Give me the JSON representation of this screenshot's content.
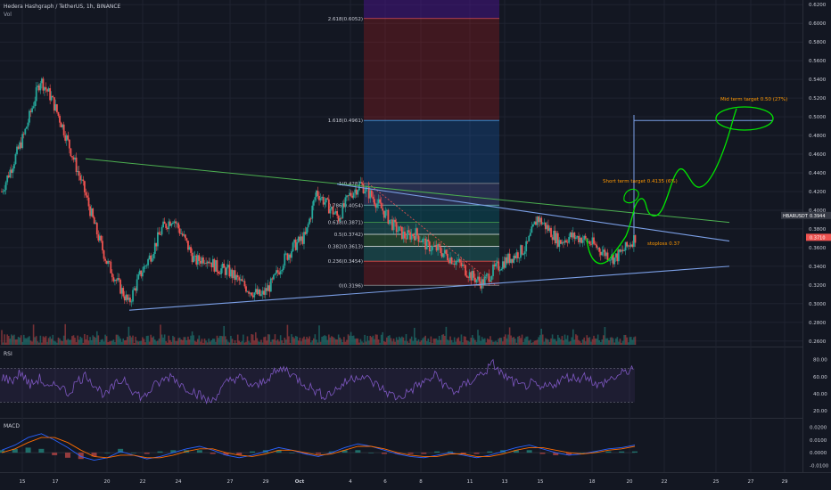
{
  "header": {
    "title": "Hedera Hashgraph / TetherUS, 1h, BINANCE",
    "volume_label": "Vol"
  },
  "panels": {
    "rsi_label": "RSI",
    "macd_label": "MACD"
  },
  "colors": {
    "background": "#131722",
    "candle_up": "#26a69a",
    "candle_down": "#ef5350",
    "trendline_green": "#4caf50",
    "trendline_blue": "#7b9fe6",
    "drawing_green": "#00e600",
    "annotation_orange": "#ff9800",
    "rsi_line": "#7e57c2",
    "macd_line": "#2962ff",
    "signal_line": "#ff6d00"
  },
  "chart_data": {
    "type": "candlestick",
    "symbol": "HBARUSDT",
    "interval": "1h",
    "exchange": "BINANCE",
    "price_axis": {
      "ticks": [
        "0.6200",
        "0.6000",
        "0.5800",
        "0.5600",
        "0.5400",
        "0.5200",
        "0.5000",
        "0.4800",
        "0.4600",
        "0.4400",
        "0.4200",
        "0.4000",
        "0.3800",
        "0.3600",
        "0.3400",
        "0.3200",
        "0.3000",
        "0.2800",
        "0.2600"
      ],
      "ylim": [
        0.255,
        0.625
      ]
    },
    "current_price_tags": [
      {
        "label": "HBARUSDT",
        "value": "0.3944"
      },
      {
        "label": "",
        "value": "0.3710"
      }
    ],
    "x_axis": {
      "ticks": [
        "15",
        "17",
        "20",
        "22",
        "24",
        "27",
        "29",
        "Oct",
        "4",
        "6",
        "8",
        "11",
        "13",
        "15",
        "18",
        "20",
        "22",
        "25",
        "27",
        "29"
      ]
    },
    "price_path": [
      [
        0,
        0.42
      ],
      [
        8,
        0.48
      ],
      [
        14,
        0.54
      ],
      [
        18,
        0.52
      ],
      [
        22,
        0.49
      ],
      [
        26,
        0.455
      ],
      [
        30,
        0.42
      ],
      [
        34,
        0.38
      ],
      [
        38,
        0.345
      ],
      [
        42,
        0.322
      ],
      [
        46,
        0.3
      ],
      [
        50,
        0.33
      ],
      [
        54,
        0.352
      ],
      [
        58,
        0.38
      ],
      [
        62,
        0.392
      ],
      [
        66,
        0.37
      ],
      [
        70,
        0.345
      ],
      [
        74,
        0.35
      ],
      [
        78,
        0.338
      ],
      [
        82,
        0.335
      ],
      [
        86,
        0.324
      ],
      [
        90,
        0.314
      ],
      [
        94,
        0.308
      ],
      [
        98,
        0.322
      ],
      [
        102,
        0.346
      ],
      [
        106,
        0.362
      ],
      [
        110,
        0.372
      ],
      [
        114,
        0.42
      ],
      [
        118,
        0.405
      ],
      [
        122,
        0.392
      ],
      [
        126,
        0.416
      ],
      [
        130,
        0.428
      ],
      [
        134,
        0.415
      ],
      [
        138,
        0.4
      ],
      [
        142,
        0.383
      ],
      [
        146,
        0.372
      ],
      [
        150,
        0.375
      ],
      [
        154,
        0.362
      ],
      [
        158,
        0.358
      ],
      [
        162,
        0.35
      ],
      [
        166,
        0.342
      ],
      [
        170,
        0.33
      ],
      [
        174,
        0.322
      ],
      [
        178,
        0.335
      ],
      [
        182,
        0.345
      ],
      [
        186,
        0.352
      ],
      [
        190,
        0.36
      ],
      [
        194,
        0.392
      ],
      [
        198,
        0.38
      ],
      [
        202,
        0.366
      ],
      [
        206,
        0.372
      ],
      [
        210,
        0.37
      ],
      [
        214,
        0.364
      ],
      [
        218,
        0.355
      ],
      [
        222,
        0.348
      ],
      [
        226,
        0.359
      ],
      [
        230,
        0.373
      ]
    ],
    "fibonacci": {
      "levels": [
        {
          "ratio": 0,
          "price": 0.3196,
          "label": "0(0.3196)"
        },
        {
          "ratio": 0.236,
          "price": 0.3454,
          "label": "0.236(0.3454)"
        },
        {
          "ratio": 0.382,
          "price": 0.3613,
          "label": "0.382(0.3613)"
        },
        {
          "ratio": 0.5,
          "price": 0.3742,
          "label": "0.5(0.3742)"
        },
        {
          "ratio": 0.618,
          "price": 0.3871,
          "label": "0.618(0.3871)"
        },
        {
          "ratio": 0.786,
          "price": 0.4054,
          "label": "0.786(0.4054)"
        },
        {
          "ratio": 1,
          "price": 0.4287,
          "label": "1(0.4287)"
        },
        {
          "ratio": 1.618,
          "price": 0.4961,
          "label": "1.618(0.4961)"
        },
        {
          "ratio": 2.618,
          "price": 0.6052,
          "label": "2.618(0.6052)"
        }
      ]
    },
    "annotations": [
      {
        "text": "Mid term target 0.50 (27%)",
        "color": "#ff9800"
      },
      {
        "text": "Short term target 0.4135 (6%)",
        "color": "#ff9800"
      },
      {
        "text": "stoploss 0.37",
        "color": "#ff9800"
      }
    ],
    "rsi": {
      "ticks": [
        "80.00",
        "60.00",
        "40.00",
        "20.00"
      ],
      "ylim": [
        15,
        88
      ],
      "upper_band": 70,
      "lower_band": 30,
      "values": [
        60,
        55,
        65,
        50,
        58,
        45,
        52,
        40,
        55,
        62,
        48,
        38,
        50,
        58,
        42,
        35,
        48,
        55,
        62,
        50,
        45,
        38,
        30,
        42,
        55,
        60,
        52,
        48,
        58,
        65,
        70,
        60,
        52,
        45,
        38,
        42,
        50,
        58,
        62,
        55,
        48,
        40,
        35,
        42,
        50,
        55,
        62,
        48,
        42,
        50,
        58,
        65,
        75,
        62,
        55,
        48,
        52,
        45,
        50,
        55,
        60,
        58,
        62,
        48,
        55,
        60,
        65,
        72
      ]
    },
    "macd": {
      "ticks": [
        "0.0200",
        "0.0100",
        "0.0000",
        "-0.0100"
      ],
      "ylim": [
        -0.014,
        0.024
      ],
      "macd_values": [
        0.002,
        0.006,
        0.012,
        0.015,
        0.01,
        0.004,
        -0.003,
        -0.006,
        -0.004,
        0.001,
        -0.002,
        -0.005,
        -0.003,
        0.0,
        0.003,
        0.005,
        0.002,
        -0.002,
        -0.004,
        -0.002,
        0.001,
        0.004,
        0.002,
        -0.001,
        -0.003,
        0.0,
        0.004,
        0.007,
        0.005,
        0.002,
        -0.001,
        -0.003,
        -0.004,
        -0.002,
        0.0,
        -0.002,
        -0.004,
        -0.002,
        0.001,
        0.004,
        0.006,
        0.003,
        0.0,
        -0.002,
        -0.001,
        0.001,
        0.003,
        0.004,
        0.006
      ],
      "signal_values": [
        0.0,
        0.003,
        0.008,
        0.012,
        0.012,
        0.008,
        0.002,
        -0.003,
        -0.004,
        -0.002,
        -0.002,
        -0.004,
        -0.004,
        -0.002,
        0.001,
        0.003,
        0.003,
        0.0,
        -0.002,
        -0.003,
        -0.001,
        0.002,
        0.002,
        0.0,
        -0.002,
        -0.001,
        0.002,
        0.005,
        0.005,
        0.003,
        0.0,
        -0.002,
        -0.003,
        -0.003,
        -0.001,
        -0.001,
        -0.003,
        -0.003,
        -0.001,
        0.002,
        0.004,
        0.004,
        0.002,
        0.0,
        -0.001,
        0.0,
        0.002,
        0.003,
        0.005
      ]
    }
  }
}
